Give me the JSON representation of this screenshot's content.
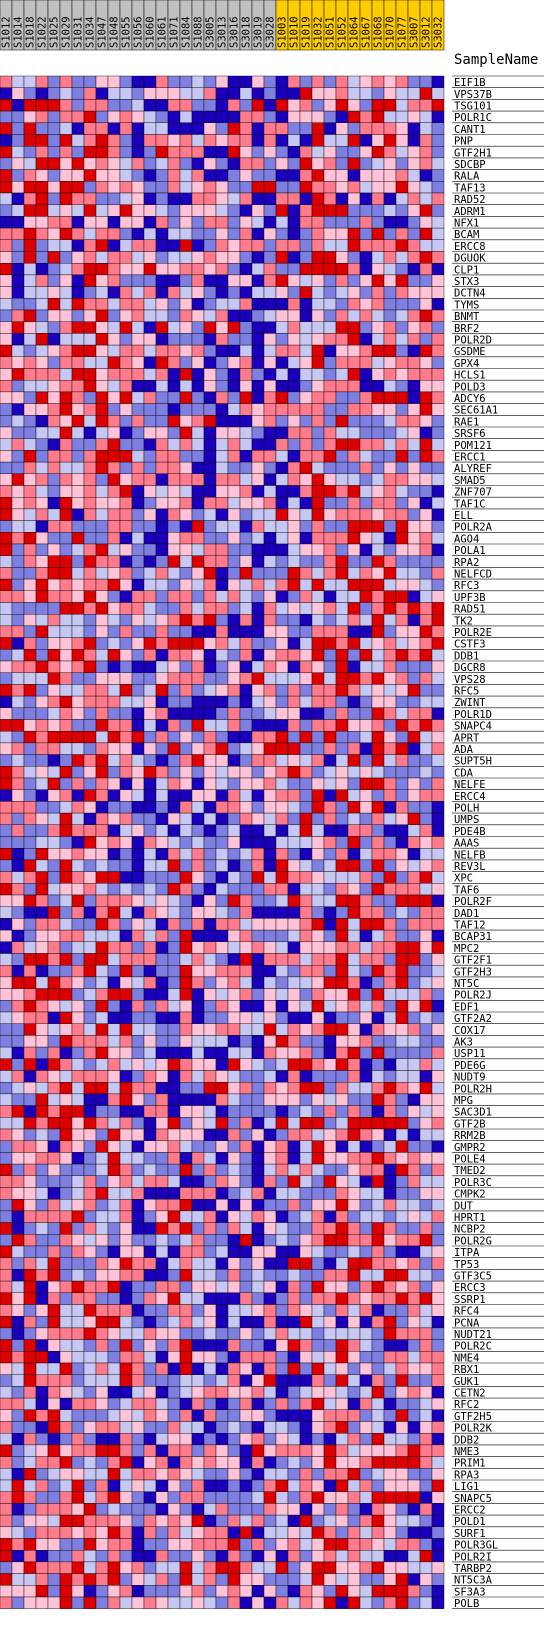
{
  "chart_data": {
    "type": "heatmap",
    "title": "",
    "corner_label": "SampleName",
    "columns": [
      {
        "name": "S1012",
        "group": "gray"
      },
      {
        "name": "S1014",
        "group": "gray"
      },
      {
        "name": "S1018",
        "group": "gray"
      },
      {
        "name": "S1022",
        "group": "gray"
      },
      {
        "name": "S1025",
        "group": "gray"
      },
      {
        "name": "S1029",
        "group": "gray"
      },
      {
        "name": "S1031",
        "group": "gray"
      },
      {
        "name": "S1034",
        "group": "gray"
      },
      {
        "name": "S1047",
        "group": "gray"
      },
      {
        "name": "S1048",
        "group": "gray"
      },
      {
        "name": "S1055",
        "group": "gray"
      },
      {
        "name": "S1056",
        "group": "gray"
      },
      {
        "name": "S1060",
        "group": "gray"
      },
      {
        "name": "S1061",
        "group": "gray"
      },
      {
        "name": "S1071",
        "group": "gray"
      },
      {
        "name": "S1084",
        "group": "gray"
      },
      {
        "name": "S1088",
        "group": "gray"
      },
      {
        "name": "S3005",
        "group": "gray"
      },
      {
        "name": "S3013",
        "group": "gray"
      },
      {
        "name": "S3016",
        "group": "gray"
      },
      {
        "name": "S3018",
        "group": "gray"
      },
      {
        "name": "S3019",
        "group": "gray"
      },
      {
        "name": "S3028",
        "group": "gray"
      },
      {
        "name": "S1003",
        "group": "gold"
      },
      {
        "name": "S1010",
        "group": "gold"
      },
      {
        "name": "S1019",
        "group": "gold"
      },
      {
        "name": "S1032",
        "group": "gold"
      },
      {
        "name": "S1051",
        "group": "gold"
      },
      {
        "name": "S1052",
        "group": "gold"
      },
      {
        "name": "S1064",
        "group": "gold"
      },
      {
        "name": "S1067",
        "group": "gold"
      },
      {
        "name": "S1068",
        "group": "gold"
      },
      {
        "name": "S1070",
        "group": "gold"
      },
      {
        "name": "S1077",
        "group": "gold"
      },
      {
        "name": "S3007",
        "group": "gold"
      },
      {
        "name": "S3012",
        "group": "gold"
      },
      {
        "name": "S3032",
        "group": "gold"
      }
    ],
    "rows": [
      "EIF1B",
      "VPS37B",
      "TSG101",
      "POLR1C",
      "CANT1",
      "PNP",
      "GTF2H1",
      "SDCBP",
      "RALA",
      "TAF13",
      "RAD52",
      "ADRM1",
      "NFX1",
      "BCAM",
      "ERCC8",
      "DGUOK",
      "CLP1",
      "STX3",
      "DCTN4",
      "TYMS",
      "BNMT",
      "BRF2",
      "POLR2D",
      "GSDME",
      "GPX4",
      "HCLS1",
      "POLD3",
      "ADCY6",
      "SEC61A1",
      "RAE1",
      "SRSF6",
      "POM121",
      "ERCC1",
      "ALYREF",
      "SMAD5",
      "ZNF707",
      "TAF1C",
      "ELL",
      "POLR2A",
      "AGO4",
      "POLA1",
      "RPA2",
      "NELFCD",
      "RFC3",
      "UPF3B",
      "RAD51",
      "TK2",
      "POLR2E",
      "CSTF3",
      "DDB1",
      "DGCR8",
      "VPS28",
      "RFC5",
      "ZWINT",
      "POLR1D",
      "SNAPC4",
      "APRT",
      "ADA",
      "SUPT5H",
      "CDA",
      "NELFE",
      "ERCC4",
      "POLH",
      "UMPS",
      "PDE4B",
      "AAAS",
      "NELFB",
      "REV3L",
      "XPC",
      "TAF6",
      "POLR2F",
      "DAD1",
      "TAF12",
      "BCAP31",
      "MPC2",
      "GTF2F1",
      "GTF2H3",
      "NT5C",
      "POLR2J",
      "EDF1",
      "GTF2A2",
      "COX17",
      "AK3",
      "USP11",
      "PDE6G",
      "NUDT9",
      "POLR2H",
      "MPG",
      "SAC3D1",
      "GTF2B",
      "RRM2B",
      "GMPR2",
      "POLE4",
      "TMED2",
      "POLR3C",
      "CMPK2",
      "DUT",
      "HPRT1",
      "NCBP2",
      "POLR2G",
      "ITPA",
      "TP53",
      "GTF3C5",
      "ERCC3",
      "SSRP1",
      "RFC4",
      "PCNA",
      "NUDT21",
      "POLR2C",
      "NME4",
      "RBX1",
      "GUK1",
      "CETN2",
      "RFC2",
      "GTF2H5",
      "POLR2K",
      "DDB2",
      "NME3",
      "PRIM1",
      "RPA3",
      "LIG1",
      "SNAPC5",
      "ERCC2",
      "POLD1",
      "SURF1",
      "POLR3GL",
      "POLR2I",
      "TARBP2",
      "NT5C3A",
      "SF3A3",
      "POLB"
    ],
    "color_scale": [
      "#1a00bb",
      "#7e7fe0",
      "#c6c7f2",
      "#ffc2d6",
      "#ff7a8a",
      "#dd0000"
    ],
    "group_colors": {
      "gray": "#c0c0c0",
      "gold": "#ffcc00"
    },
    "rng_seed": 17,
    "column_bias": [
      0.15,
      -0.05,
      0.2,
      0.05,
      0.1,
      0.25,
      0.1,
      0.15,
      0.2,
      0.1,
      -0.05,
      -0.25,
      -0.15,
      -0.2,
      -0.1,
      0.05,
      -0.1,
      -0.15,
      -0.25,
      -0.2,
      -0.1,
      -0.3,
      -0.15,
      -0.05,
      -0.1,
      0.05,
      0.3,
      0.0,
      0.2,
      0.15,
      -0.1,
      0.2,
      0.0,
      0.25,
      -0.15,
      0.1,
      -0.1
    ]
  }
}
